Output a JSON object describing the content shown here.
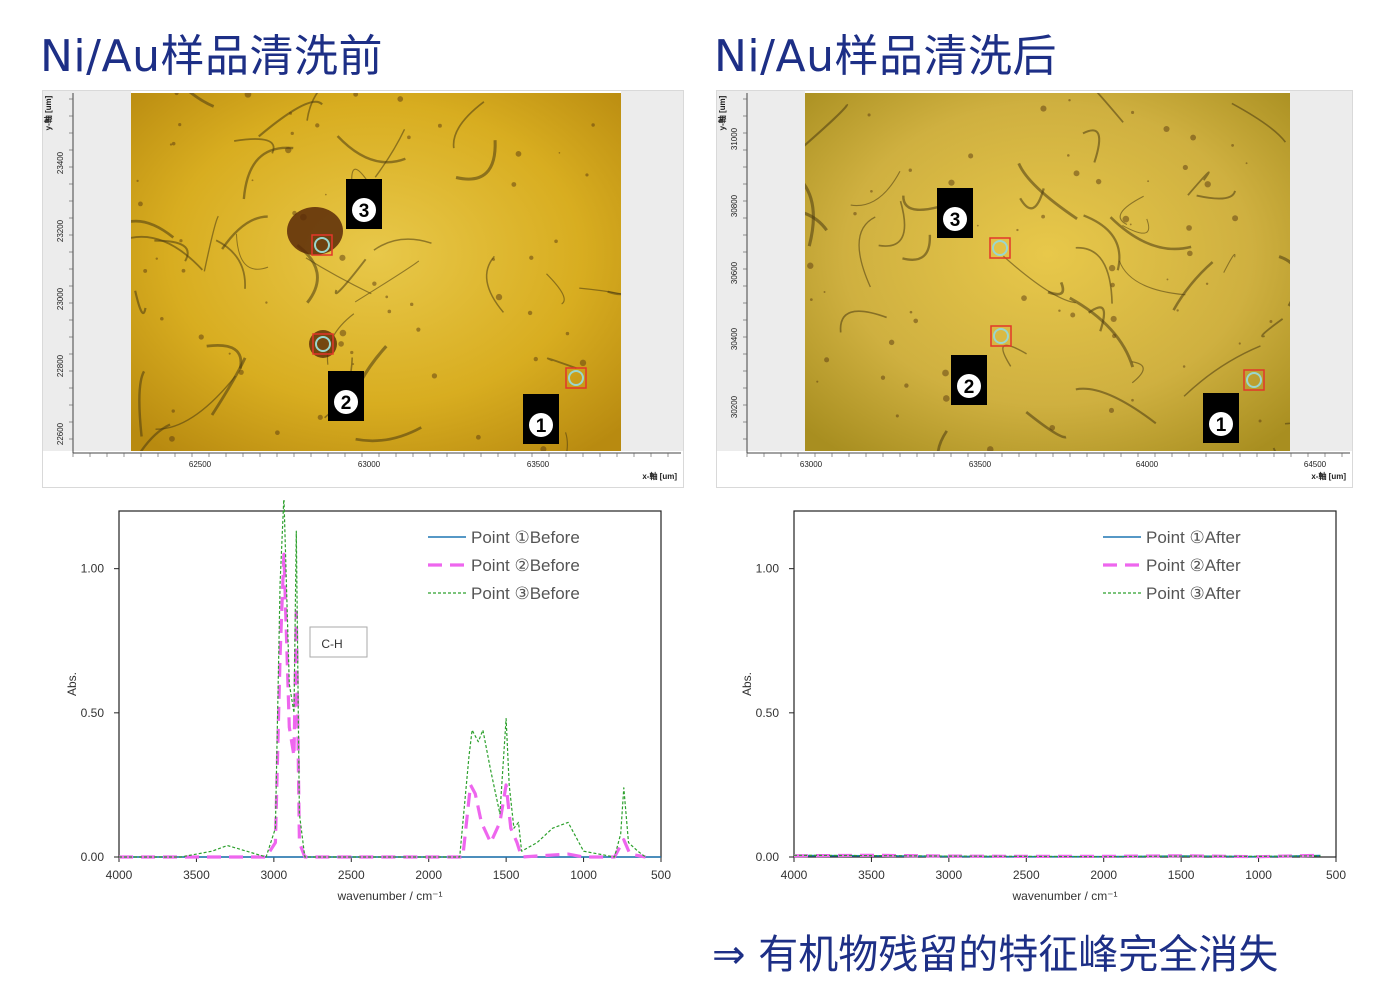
{
  "titles": {
    "left": "Ni/Au样品清洗前",
    "right": "Ni/Au样品清洗后"
  },
  "conclusion": "⇒ 有机物残留的特征峰完全消失",
  "colors": {
    "title": "#1d2f86",
    "series1": "#1f77b4",
    "series2": "#ee66ee",
    "series3": "#2ca02c",
    "marker_box": "#e2372a",
    "marker_circle": "#9ad7cf",
    "micro_base": "#c9a51f"
  },
  "micrographs": [
    {
      "id": "before",
      "x_ticks": [
        "62500",
        "63000",
        "63500"
      ],
      "y_ticks": [
        "23400",
        "23200",
        "23000",
        "22800",
        "22600"
      ],
      "x_axis_label": "x-軸 [um]",
      "y_axis_label": "y-軸 [um]",
      "points": [
        {
          "label": "3",
          "name": "point-3"
        },
        {
          "label": "2",
          "name": "point-2"
        },
        {
          "label": "1",
          "name": "point-1"
        }
      ]
    },
    {
      "id": "after",
      "x_ticks": [
        "63000",
        "63500",
        "64000",
        "64500"
      ],
      "y_ticks": [
        "31000",
        "30800",
        "30600",
        "30400",
        "30200"
      ],
      "x_axis_label": "x-軸 [um]",
      "y_axis_label": "y-軸 [um]",
      "points": [
        {
          "label": "3",
          "name": "point-3"
        },
        {
          "label": "2",
          "name": "point-2"
        },
        {
          "label": "1",
          "name": "point-1"
        }
      ]
    }
  ],
  "chart_data": [
    {
      "type": "line",
      "xlabel": "wavenumber / cm⁻¹",
      "ylabel": "Abs.",
      "xlim": [
        4000,
        500
      ],
      "ylim": [
        0,
        1.2
      ],
      "x_reversed": true,
      "x_ticks": [
        4000,
        3500,
        3000,
        2500,
        2000,
        1500,
        1000,
        500
      ],
      "y_ticks": [
        "0.00",
        "0.50",
        "1.00"
      ],
      "annotation": "C-H",
      "legend_position": "top-right",
      "series": [
        {
          "name": "Point ①Before",
          "style": "solid",
          "x": [
            4000,
            3000,
            2930,
            2850,
            1730,
            1500,
            1200,
            500
          ],
          "y": [
            0.0,
            0.0,
            0.0,
            0.0,
            0.0,
            0.0,
            0.0,
            0.0
          ]
        },
        {
          "name": "Point ②Before",
          "style": "dashed",
          "x": [
            4000,
            3050,
            2990,
            2960,
            2935,
            2900,
            2870,
            2855,
            2835,
            2800,
            1780,
            1730,
            1700,
            1660,
            1600,
            1540,
            1500,
            1470,
            1430,
            1400,
            1100,
            1000,
            800,
            740,
            700,
            600
          ],
          "y": [
            0.0,
            0.0,
            0.05,
            0.7,
            1.05,
            0.45,
            0.35,
            0.85,
            0.05,
            0.0,
            0.0,
            0.25,
            0.22,
            0.12,
            0.05,
            0.12,
            0.25,
            0.1,
            0.05,
            0.0,
            0.01,
            0.0,
            0.0,
            0.06,
            0.01,
            0.0
          ]
        },
        {
          "name": "Point ③Before",
          "style": "dotted",
          "x": [
            4000,
            3600,
            3400,
            3300,
            3050,
            2990,
            2960,
            2935,
            2900,
            2870,
            2855,
            2835,
            2800,
            1800,
            1740,
            1720,
            1680,
            1650,
            1600,
            1540,
            1500,
            1480,
            1450,
            1420,
            1400,
            1300,
            1200,
            1100,
            1000,
            800,
            760,
            740,
            710,
            650,
            600
          ],
          "y": [
            0.0,
            0.0,
            0.02,
            0.04,
            0.0,
            0.1,
            0.95,
            1.25,
            0.6,
            0.5,
            1.13,
            0.15,
            0.0,
            0.0,
            0.35,
            0.44,
            0.4,
            0.44,
            0.3,
            0.15,
            0.48,
            0.25,
            0.1,
            0.12,
            0.02,
            0.05,
            0.1,
            0.12,
            0.02,
            0.0,
            0.08,
            0.24,
            0.05,
            0.02,
            0.0
          ]
        }
      ]
    },
    {
      "type": "line",
      "xlabel": "wavenumber / cm⁻¹",
      "ylabel": "Abs.",
      "xlim": [
        4000,
        500
      ],
      "ylim": [
        0,
        1.2
      ],
      "x_reversed": true,
      "x_ticks": [
        4000,
        3500,
        3000,
        2500,
        2000,
        1500,
        1000,
        500
      ],
      "y_ticks": [
        "0.00",
        "0.50",
        "1.00"
      ],
      "legend_position": "top-right",
      "series": [
        {
          "name": "Point ①After",
          "style": "solid",
          "x": [
            4000,
            3500,
            3000,
            2500,
            2000,
            1500,
            1000,
            600
          ],
          "y": [
            0.005,
            0.004,
            0.002,
            0.001,
            0.001,
            0.003,
            0.001,
            0.005
          ]
        },
        {
          "name": "Point ②After",
          "style": "dashed",
          "x": [
            4000,
            3500,
            3000,
            2500,
            2000,
            1500,
            1000,
            600
          ],
          "y": [
            0.004,
            0.006,
            0.003,
            0.002,
            0.002,
            0.004,
            0.001,
            0.006
          ]
        },
        {
          "name": "Point ③After",
          "style": "dotted",
          "x": [
            4000,
            3500,
            3000,
            2500,
            2000,
            1500,
            1000,
            600
          ],
          "y": [
            0.006,
            0.005,
            0.003,
            0.002,
            0.001,
            0.003,
            0.002,
            0.004
          ]
        }
      ]
    }
  ]
}
